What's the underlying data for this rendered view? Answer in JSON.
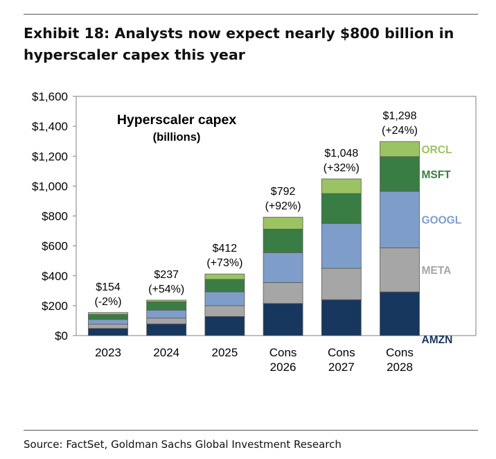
{
  "exhibit": {
    "headline": "Exhibit 18: Analysts now expect nearly $800 billion in hyperscaler capex this year",
    "source": "Source: FactSet, Goldman Sachs Global Investment Research"
  },
  "chart_data": {
    "type": "bar",
    "stacked": true,
    "title": "Hyperscaler capex",
    "subtitle": "(billions)",
    "categories": [
      [
        "2023"
      ],
      [
        "2024"
      ],
      [
        "2025"
      ],
      [
        "Cons",
        "2026"
      ],
      [
        "Cons",
        "2027"
      ],
      [
        "Cons",
        "2028"
      ]
    ],
    "ylim": [
      0,
      1600
    ],
    "yticks": [
      0,
      200,
      400,
      600,
      800,
      1000,
      1200,
      1400,
      1600
    ],
    "ytick_labels": [
      "$0",
      "$200",
      "$400",
      "$600",
      "$800",
      "$1,000",
      "$1,200",
      "$1,400",
      "$1,600"
    ],
    "grid": false,
    "legend": "labels at right of last bar",
    "series": [
      {
        "name": "AMZN",
        "color": "#17375e",
        "values": [
          48,
          78,
          128,
          215,
          240,
          292
        ]
      },
      {
        "name": "META",
        "color": "#a6a6a6",
        "values": [
          28,
          39,
          72,
          140,
          210,
          295
        ]
      },
      {
        "name": "GOOGL",
        "color": "#7f9dc9",
        "values": [
          32,
          53,
          92,
          200,
          300,
          378
        ]
      },
      {
        "name": "MSFT",
        "color": "#3a7d44",
        "values": [
          33,
          56,
          84,
          157,
          200,
          232
        ]
      },
      {
        "name": "ORCL",
        "color": "#9bc363",
        "values": [
          13,
          11,
          36,
          80,
          98,
          101
        ]
      }
    ],
    "totals": [
      154,
      237,
      412,
      792,
      1048,
      1298
    ],
    "total_labels": [
      "$154",
      "$237",
      "$412",
      "$792",
      "$1,048",
      "$1,298"
    ],
    "growth_labels": [
      "(-2%)",
      "(+54%)",
      "(+73%)",
      "(+92%)",
      "(+32%)",
      "(+24%)"
    ]
  }
}
